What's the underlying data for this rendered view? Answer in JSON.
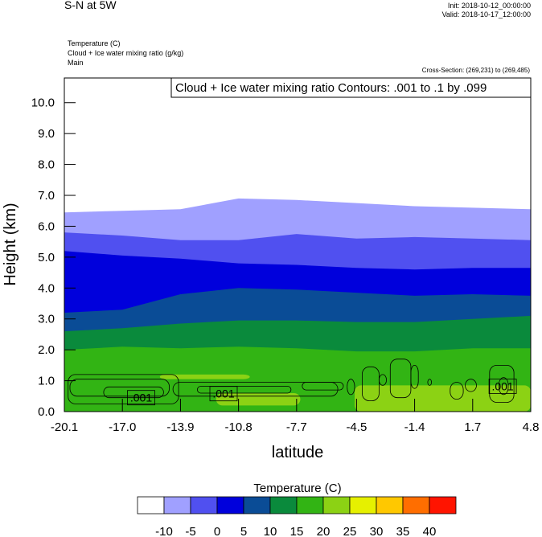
{
  "header": {
    "title": "S-N at 5W",
    "init": "Init: 2018-10-12_00:00:00",
    "valid": "Valid: 2018-10-17_12:00:00",
    "fields": [
      "Temperature   (C)",
      "Cloud + Ice water mixing ratio   (g/kg)",
      "Main"
    ],
    "cross_section": "Cross-Section: (269,231) to (269,485)"
  },
  "colors": {
    "levels": [
      "#ffffff",
      "#a0a0ff",
      "#5050f0",
      "#0000dc",
      "#0a4c96",
      "#0a8a3c",
      "#32b414",
      "#8cd214",
      "#e6f000",
      "#ffc800",
      "#ff6e00",
      "#ff1400"
    ]
  },
  "chart_data": {
    "type": "contour",
    "title": "",
    "annotation": "Cloud + Ice water mixing ratio Contours: .001 to .1 by .099",
    "xlabel": "latitude",
    "ylabel": "Height (km)",
    "xlim": [
      -20.1,
      4.8
    ],
    "ylim": [
      0.0,
      10.8
    ],
    "x_ticks": [
      "-20.1",
      "-17.0",
      "-13.9",
      "-10.8",
      "-7.7",
      "-4.5",
      "-1.4",
      "1.7",
      "4.8"
    ],
    "y_ticks": [
      "0.0",
      "1.0",
      "2.0",
      "3.0",
      "4.0",
      "5.0",
      "6.0",
      "7.0",
      "8.0",
      "9.0",
      "10.0"
    ],
    "x_tick_values": [
      -20.1,
      -17.0,
      -13.9,
      -10.8,
      -7.7,
      -4.5,
      -1.4,
      1.7,
      4.8
    ],
    "y_tick_values": [
      0,
      1,
      2,
      3,
      4,
      5,
      6,
      7,
      8,
      9,
      10
    ],
    "temperature_bands": [
      {
        "lower_c": -10,
        "upper_c": -5,
        "height_km": [
          [
            -20.1,
            6.45
          ],
          [
            -17.0,
            6.5
          ],
          [
            -13.9,
            6.55
          ],
          [
            -10.8,
            6.9
          ],
          [
            -7.7,
            6.85
          ],
          [
            -4.5,
            6.75
          ],
          [
            -1.4,
            6.65
          ],
          [
            1.7,
            6.6
          ],
          [
            4.8,
            6.55
          ]
        ]
      },
      {
        "lower_c": -5,
        "upper_c": 0,
        "height_km": [
          [
            -20.1,
            5.8
          ],
          [
            -17.0,
            5.7
          ],
          [
            -13.9,
            5.55
          ],
          [
            -10.8,
            5.55
          ],
          [
            -7.7,
            5.75
          ],
          [
            -4.5,
            5.6
          ],
          [
            -1.4,
            5.65
          ],
          [
            1.7,
            5.6
          ],
          [
            4.8,
            5.55
          ]
        ]
      },
      {
        "lower_c": 0,
        "upper_c": 5,
        "height_km": [
          [
            -20.1,
            5.2
          ],
          [
            -17.0,
            5.05
          ],
          [
            -13.9,
            4.95
          ],
          [
            -10.8,
            4.8
          ],
          [
            -7.7,
            4.75
          ],
          [
            -4.5,
            4.65
          ],
          [
            -1.4,
            4.6
          ],
          [
            1.7,
            4.65
          ],
          [
            4.8,
            4.65
          ]
        ]
      },
      {
        "lower_c": 5,
        "upper_c": 10,
        "height_km": [
          [
            -20.1,
            3.2
          ],
          [
            -17.0,
            3.3
          ],
          [
            -13.9,
            3.8
          ],
          [
            -10.8,
            4.0
          ],
          [
            -7.7,
            3.95
          ],
          [
            -4.5,
            3.85
          ],
          [
            -1.4,
            3.75
          ],
          [
            1.7,
            3.8
          ],
          [
            4.8,
            3.75
          ]
        ]
      },
      {
        "lower_c": 10,
        "upper_c": 15,
        "height_km": [
          [
            -20.1,
            2.6
          ],
          [
            -17.0,
            2.7
          ],
          [
            -13.9,
            2.85
          ],
          [
            -10.8,
            2.95
          ],
          [
            -7.7,
            2.95
          ],
          [
            -4.5,
            2.9
          ],
          [
            -1.4,
            2.9
          ],
          [
            1.7,
            3.0
          ],
          [
            4.8,
            3.1
          ]
        ]
      },
      {
        "lower_c": 15,
        "upper_c": 20,
        "height_km": [
          [
            -20.1,
            2.0
          ],
          [
            -17.0,
            2.1
          ],
          [
            -13.9,
            2.05
          ],
          [
            -10.8,
            2.1
          ],
          [
            -7.7,
            2.05
          ],
          [
            -4.5,
            1.95
          ],
          [
            -1.4,
            1.95
          ],
          [
            1.7,
            2.05
          ],
          [
            4.8,
            2.05
          ]
        ]
      },
      {
        "lower_c": 20,
        "upper_c": 25,
        "height_km": [
          [
            -20.1,
            0.0
          ],
          [
            -4.5,
            0.0
          ],
          [
            -1.4,
            0.0
          ],
          [
            1.7,
            0.0
          ],
          [
            4.8,
            0.0
          ]
        ]
      }
    ],
    "warm_patches_20_25": [
      {
        "x": [
          -15.0,
          -10.2
        ],
        "y": [
          1.05,
          1.2
        ]
      },
      {
        "x": [
          -12.0,
          -7.5
        ],
        "y": [
          0.2,
          0.6
        ]
      },
      {
        "x": [
          -4.6,
          4.8
        ],
        "y": [
          0.0,
          0.85
        ]
      }
    ],
    "cloud_contour_level_labels": [
      {
        "text": ".001",
        "x": -16.0,
        "y": 0.45
      },
      {
        "text": ".001",
        "x": -11.6,
        "y": 0.58
      },
      {
        "text": ".001",
        "x": 3.3,
        "y": 0.82
      }
    ],
    "colorbar": {
      "title": "Temperature  (C)",
      "labels": [
        "-10",
        "-5",
        "0",
        "5",
        "10",
        "15",
        "20",
        "25",
        "30",
        "35",
        "40"
      ]
    }
  }
}
